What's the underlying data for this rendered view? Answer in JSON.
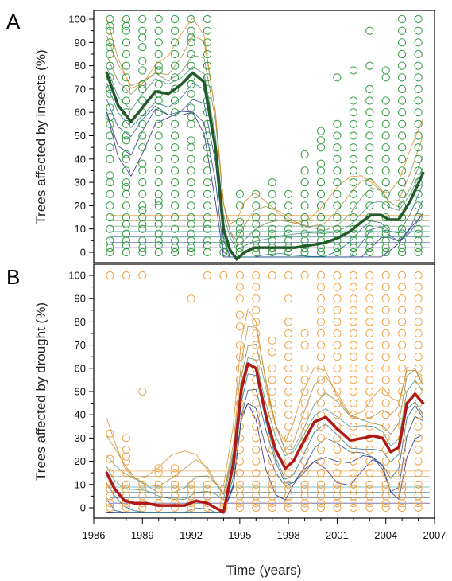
{
  "figure": {
    "xlabel": "Time (years)"
  },
  "colors": {
    "insect_points": "#2e9a3c",
    "insect_line": "#245a2a",
    "drought_points": "#f0a040",
    "drought_line": "#b01818",
    "contour_low": "#2a1a7a",
    "contour_high": "#e08a20"
  },
  "chart_data": [
    {
      "panel": "A",
      "type": "line",
      "overlay": [
        "scatter",
        "contour"
      ],
      "ylabel": "Trees affected by insects (%)",
      "xlim": [
        1986,
        2007
      ],
      "ylim": [
        -3,
        103
      ],
      "yticks": [
        0,
        10,
        20,
        30,
        40,
        50,
        60,
        70,
        80,
        90,
        100
      ],
      "xticks": [
        1986,
        1989,
        1992,
        1995,
        1998,
        2001,
        2004,
        2007
      ],
      "grid": false,
      "trend": {
        "x": [
          1986.8,
          1987.5,
          1988.3,
          1989,
          1989.8,
          1990.6,
          1991.4,
          1992.1,
          1992.8,
          1993.5,
          1994.0,
          1994.4,
          1994.8,
          1995.3,
          1995.9,
          1996.6,
          1997.5,
          1998.4,
          1999.3,
          2000.2,
          2001.0,
          2001.8,
          2002.5,
          2003.1,
          2003.7,
          2004.2,
          2004.8,
          2005.5,
          2006.3
        ],
        "y": [
          77,
          63,
          56,
          62,
          69,
          68,
          72,
          77,
          73,
          45,
          10,
          1,
          -3,
          0,
          2,
          2,
          2,
          2,
          3,
          4,
          6,
          9,
          13,
          16,
          16,
          14,
          14,
          22,
          34
        ]
      },
      "scatter": {
        "years": [
          1987,
          1988,
          1989,
          1990,
          1991,
          1992,
          1993,
          1994,
          1995,
          1996,
          1997,
          1998,
          1999,
          2000,
          2001,
          2002,
          2003,
          2004,
          2005,
          2006
        ],
        "y": [
          [
            0,
            2,
            5,
            10,
            15,
            20,
            25,
            30,
            33,
            40,
            45,
            50,
            55,
            58,
            62,
            68,
            70,
            75,
            80,
            85,
            88,
            90,
            95,
            97,
            100
          ],
          [
            0,
            3,
            5,
            8,
            12,
            15,
            20,
            25,
            28,
            30,
            35,
            40,
            42,
            48,
            50,
            55,
            60,
            65,
            70,
            75,
            80,
            85,
            90,
            95,
            97,
            100
          ],
          [
            0,
            2,
            5,
            10,
            12,
            15,
            18,
            20,
            25,
            30,
            35,
            38,
            45,
            50,
            55,
            60,
            65,
            70,
            72,
            78,
            82,
            88,
            92,
            95,
            100
          ],
          [
            0,
            3,
            5,
            8,
            12,
            15,
            20,
            22,
            25,
            30,
            35,
            40,
            45,
            50,
            55,
            60,
            65,
            68,
            72,
            78,
            80,
            85,
            90,
            95,
            100
          ],
          [
            0,
            2,
            5,
            10,
            15,
            20,
            25,
            30,
            35,
            40,
            45,
            50,
            55,
            60,
            65,
            70,
            75,
            80,
            85,
            90,
            95,
            100
          ],
          [
            0,
            2,
            5,
            8,
            12,
            15,
            20,
            25,
            30,
            35,
            40,
            45,
            48,
            55,
            58,
            62,
            68,
            72,
            75,
            80,
            85,
            90,
            92,
            95,
            100
          ],
          [
            0,
            3,
            5,
            10,
            12,
            15,
            20,
            25,
            30,
            35,
            40,
            45,
            50,
            55,
            60,
            65,
            70,
            75,
            80,
            85,
            90,
            95,
            100
          ],
          [
            0,
            3,
            5
          ],
          [
            0,
            2,
            5,
            8,
            10,
            13,
            20,
            25
          ],
          [
            0,
            2,
            5,
            8,
            12,
            15,
            20,
            25
          ],
          [
            0,
            2,
            5,
            8,
            10,
            15,
            20,
            25,
            30
          ],
          [
            0,
            2,
            5,
            8,
            10,
            15,
            20,
            25
          ],
          [
            0,
            2,
            5,
            8,
            12,
            15,
            20,
            25,
            30,
            35,
            42
          ],
          [
            0,
            2,
            5,
            8,
            10,
            15,
            20,
            25,
            30,
            35,
            38,
            45,
            48,
            52
          ],
          [
            0,
            2,
            5,
            8,
            10,
            15,
            20,
            25,
            30,
            35,
            40,
            45,
            50,
            55,
            75
          ],
          [
            0,
            2,
            5,
            8,
            10,
            15,
            20,
            25,
            30,
            35,
            40,
            45,
            50,
            55,
            60,
            65,
            78
          ],
          [
            0,
            2,
            5,
            8,
            10,
            15,
            20,
            25,
            30,
            35,
            40,
            45,
            50,
            55,
            60,
            65,
            70,
            80,
            95
          ],
          [
            0,
            2,
            5,
            8,
            10,
            15,
            20,
            25,
            30,
            35,
            40,
            45,
            50,
            55,
            60,
            65,
            75,
            78
          ],
          [
            0,
            2,
            5,
            8,
            10,
            15,
            20,
            25,
            30,
            35,
            40,
            45,
            50,
            55,
            60,
            65,
            70,
            75,
            80,
            85,
            90,
            95,
            100
          ],
          [
            0,
            2,
            5,
            8,
            10,
            15,
            20,
            25,
            30,
            35,
            40,
            45,
            50,
            55,
            60,
            65,
            70,
            75,
            80,
            85,
            90,
            95,
            100
          ]
        ]
      }
    },
    {
      "panel": "B",
      "type": "line",
      "overlay": [
        "scatter",
        "contour"
      ],
      "ylabel": "Trees affected by drought (%)",
      "xlim": [
        1986,
        2007
      ],
      "ylim": [
        -3,
        103
      ],
      "yticks": [
        0,
        10,
        20,
        30,
        40,
        50,
        60,
        70,
        80,
        90,
        100
      ],
      "xticks": [
        1986,
        1989,
        1992,
        1995,
        1998,
        2001,
        2004,
        2007
      ],
      "xtick_labels": [
        "1986",
        "1989",
        "1992",
        "1995",
        "1998",
        "2001",
        "2004",
        "2007"
      ],
      "grid": false,
      "trend": {
        "x": [
          1986.8,
          1987.3,
          1987.9,
          1988.5,
          1989.2,
          1990.0,
          1990.8,
          1991.6,
          1992.3,
          1993.0,
          1993.5,
          1994.0,
          1994.6,
          1995.1,
          1995.5,
          1996.0,
          1996.6,
          1997.2,
          1997.8,
          1998.3,
          1998.9,
          1999.6,
          2000.3,
          2001.0,
          2001.8,
          2002.6,
          2003.2,
          2003.8,
          2004.3,
          2004.8,
          2005.3,
          2005.8,
          2006.3
        ],
        "y": [
          15,
          8,
          3,
          2,
          2,
          1,
          1,
          1,
          3,
          2,
          0,
          -2,
          19,
          51,
          62,
          60,
          40,
          25,
          17,
          20,
          28,
          37,
          39,
          34,
          29,
          30,
          31,
          30,
          24,
          26,
          45,
          49,
          45
        ]
      },
      "scatter": {
        "years": [
          1987,
          1988,
          1989,
          1990,
          1991,
          1992,
          1993,
          1994,
          1995,
          1996,
          1997,
          1998,
          1999,
          2000,
          2001,
          2002,
          2003,
          2004,
          2005,
          2006
        ],
        "y": [
          [
            0,
            2,
            5,
            8,
            10,
            15,
            21,
            32,
            100
          ],
          [
            0,
            2,
            5,
            8,
            10,
            15,
            20,
            22,
            25,
            30,
            100
          ],
          [
            0,
            2,
            5,
            8,
            10,
            50,
            100
          ],
          [
            0,
            2,
            5,
            8,
            10,
            15,
            17
          ],
          [
            0,
            2,
            5,
            8,
            10,
            15,
            17
          ],
          [
            0,
            2,
            5,
            8,
            10,
            90
          ],
          [
            0,
            2,
            5,
            8,
            10,
            100
          ],
          [
            0,
            2,
            5,
            8,
            100
          ],
          [
            0,
            2,
            5,
            8,
            10,
            15,
            20,
            25,
            30,
            35,
            40,
            45,
            50,
            55,
            60,
            65,
            70,
            78,
            83,
            90,
            95,
            100
          ],
          [
            0,
            2,
            5,
            8,
            10,
            15,
            20,
            25,
            30,
            35,
            40,
            45,
            50,
            55,
            60,
            65,
            70,
            75,
            80,
            85,
            90,
            95,
            100
          ],
          [
            0,
            2,
            5,
            8,
            10,
            15,
            20,
            25,
            30,
            35,
            40,
            45,
            50,
            55,
            60,
            67,
            72,
            100
          ],
          [
            0,
            2,
            5,
            8,
            10,
            15,
            20,
            25,
            30,
            35,
            40,
            45,
            50,
            55,
            60,
            65,
            70,
            75,
            80,
            90,
            100
          ],
          [
            0,
            2,
            5,
            8,
            10,
            15,
            20,
            25,
            30,
            35,
            40,
            45,
            50,
            55,
            60,
            70,
            75,
            100
          ],
          [
            0,
            2,
            5,
            8,
            10,
            15,
            20,
            25,
            30,
            35,
            40,
            45,
            50,
            55,
            60,
            65,
            70,
            75,
            80,
            85,
            90,
            95,
            100
          ],
          [
            0,
            2,
            5,
            8,
            10,
            15,
            20,
            25,
            30,
            35,
            40,
            45,
            50,
            55,
            60,
            65,
            70,
            75,
            80,
            85,
            90,
            95,
            100
          ],
          [
            0,
            2,
            5,
            8,
            10,
            15,
            20,
            25,
            30,
            35,
            40,
            45,
            50,
            55,
            60,
            65,
            70,
            75,
            80,
            85,
            90,
            95,
            100
          ],
          [
            0,
            2,
            5,
            8,
            10,
            15,
            20,
            25,
            30,
            35,
            40,
            45,
            50,
            55,
            60,
            65,
            70,
            75,
            80,
            85,
            90,
            95,
            100
          ],
          [
            0,
            2,
            5,
            8,
            10,
            15,
            20,
            25,
            30,
            35,
            40,
            45,
            50,
            55,
            60,
            65,
            70,
            75,
            80,
            85,
            90,
            95,
            100
          ],
          [
            0,
            2,
            5,
            8,
            10,
            15,
            20,
            25,
            30,
            35,
            40,
            45,
            50,
            55,
            60,
            65,
            70,
            75,
            80,
            85,
            90,
            95,
            100
          ],
          [
            0,
            2,
            5,
            8,
            10,
            15,
            20,
            25,
            30,
            35,
            40,
            45,
            50,
            55,
            60,
            65,
            70,
            75,
            80,
            85,
            90,
            95,
            100
          ]
        ]
      }
    }
  ]
}
